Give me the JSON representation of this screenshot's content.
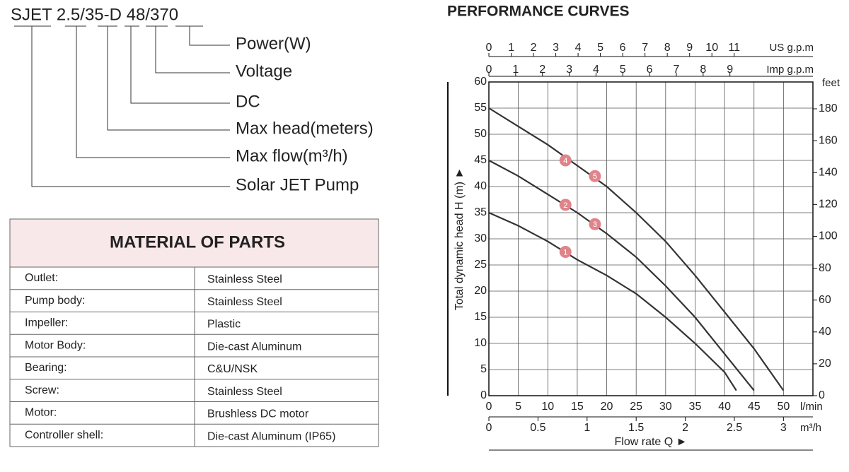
{
  "model_code": {
    "code": "SJET 2.5/35-D 48/370",
    "labels": [
      "Power(W)",
      "Voltage",
      "DC",
      "Max head(meters)",
      "Max flow(m³/h)",
      "Solar JET Pump"
    ]
  },
  "materials": {
    "title": "MATERIAL OF PARTS",
    "rows": [
      [
        "Outlet:",
        "Stainless Steel"
      ],
      [
        "Pump body:",
        "Stainless Steel"
      ],
      [
        "Impeller:",
        "Plastic"
      ],
      [
        "Motor Body:",
        "Die-cast Aluminum"
      ],
      [
        "Bearing:",
        "C&U/NSK"
      ],
      [
        "Screw:",
        "Stainless Steel"
      ],
      [
        "Motor:",
        "Brushless DC motor"
      ],
      [
        "Controller shell:",
        "Die-cast Aluminum (IP65)"
      ]
    ]
  },
  "chart_data": {
    "type": "line",
    "title": "PERFORMANCE CURVES",
    "xlabel": "Flow rate Q ►",
    "ylabel": "Total dynamic head H (m) ►",
    "x_unit": "l/min",
    "xlim": [
      0,
      55
    ],
    "xticks": [
      0,
      5,
      10,
      15,
      20,
      25,
      30,
      35,
      40,
      45,
      50
    ],
    "ylim": [
      0,
      60
    ],
    "yticks": [
      0,
      5,
      10,
      15,
      20,
      25,
      30,
      35,
      40,
      45,
      50,
      55,
      60
    ],
    "grid": true,
    "x_bottom2": {
      "unit": "m³/h",
      "xlim": [
        0,
        3.3
      ],
      "xticks": [
        0,
        0.5,
        1,
        1.5,
        2,
        2.5,
        3
      ]
    },
    "x_top_us": {
      "unit": "US g.p.m",
      "xlim": [
        0,
        14.53
      ],
      "xticks": [
        0,
        1,
        2,
        3,
        4,
        5,
        6,
        7,
        8,
        9,
        10,
        11
      ]
    },
    "x_top_imp": {
      "unit": "Imp g.p.m",
      "xlim": [
        0,
        12.1
      ],
      "xticks": [
        0,
        1,
        2,
        3,
        4,
        5,
        6,
        7,
        8,
        9
      ]
    },
    "y2": {
      "unit": "feet",
      "ylim": [
        0,
        196.85
      ],
      "yticks": [
        0,
        20,
        40,
        60,
        80,
        100,
        120,
        140,
        160,
        180
      ]
    },
    "series": [
      {
        "color": "#333333",
        "x": [
          0,
          5,
          10,
          15,
          20,
          25,
          30,
          35,
          40,
          42
        ],
        "values": [
          35,
          32.5,
          29.5,
          26,
          23,
          19.5,
          15,
          10,
          4.5,
          1
        ]
      },
      {
        "color": "#333333",
        "x": [
          0,
          5,
          10,
          15,
          20,
          25,
          30,
          35,
          40,
          45
        ],
        "values": [
          45,
          42,
          38.5,
          35,
          31,
          26.5,
          21,
          15,
          8,
          1
        ]
      },
      {
        "color": "#333333",
        "x": [
          0,
          5,
          10,
          15,
          20,
          25,
          30,
          35,
          40,
          45,
          50
        ],
        "values": [
          55,
          51.5,
          48,
          44,
          40,
          35,
          29.5,
          23,
          16,
          9,
          1
        ]
      }
    ],
    "marker_color": "#e0848a",
    "markers": [
      {
        "label": "1",
        "x": 13,
        "y": 27.5
      },
      {
        "label": "2",
        "x": 13,
        "y": 36.5
      },
      {
        "label": "3",
        "x": 18,
        "y": 32.8
      },
      {
        "label": "4",
        "x": 13,
        "y": 45
      },
      {
        "label": "5",
        "x": 18,
        "y": 42
      }
    ]
  }
}
